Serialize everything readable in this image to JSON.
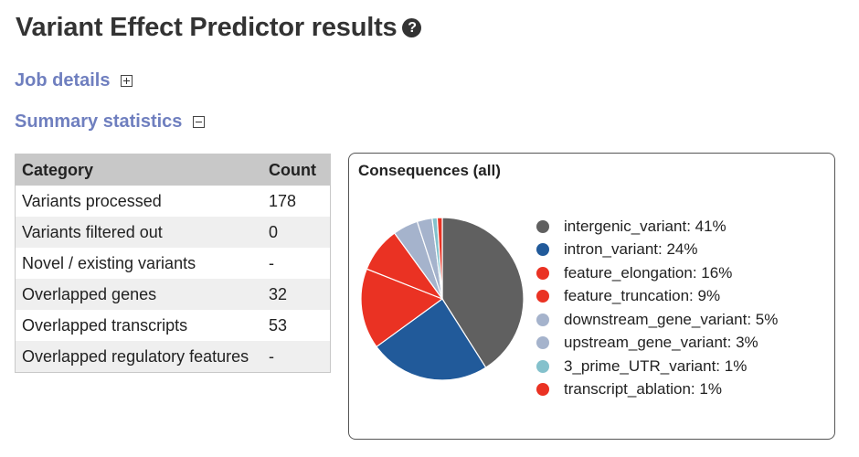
{
  "page": {
    "title": "Variant Effect Predictor results",
    "help_icon": "question-circle-icon"
  },
  "sections": {
    "job_details": "Job details",
    "summary_statistics": "Summary statistics"
  },
  "stats_table": {
    "headers": [
      "Category",
      "Count"
    ],
    "rows": [
      {
        "category": "Variants processed",
        "count": "178"
      },
      {
        "category": "Variants filtered out",
        "count": "0"
      },
      {
        "category": "Novel / existing variants",
        "count": "-"
      },
      {
        "category": "Overlapped genes",
        "count": "32"
      },
      {
        "category": "Overlapped transcripts",
        "count": "53"
      },
      {
        "category": "Overlapped regulatory features",
        "count": "-"
      }
    ]
  },
  "chart_data": {
    "type": "pie",
    "title": "Consequences (all)",
    "legend_position": "right",
    "slices": [
      {
        "label": "intergenic_variant",
        "percent": 41,
        "display": "intergenic_variant: 41%",
        "color": "#606060"
      },
      {
        "label": "intron_variant",
        "percent": 24,
        "display": "intron_variant: 24%",
        "color": "#215a9a"
      },
      {
        "label": "feature_elongation",
        "percent": 16,
        "display": "feature_elongation: 16%",
        "color": "#ea3223"
      },
      {
        "label": "feature_truncation",
        "percent": 9,
        "display": "feature_truncation: 9%",
        "color": "#ea3223"
      },
      {
        "label": "downstream_gene_variant",
        "percent": 5,
        "display": "downstream_gene_variant: 5%",
        "color": "#a5b3cc"
      },
      {
        "label": "upstream_gene_variant",
        "percent": 3,
        "display": "upstream_gene_variant: 3%",
        "color": "#a5b3cc"
      },
      {
        "label": "3_prime_UTR_variant",
        "percent": 1,
        "display": "3_prime_UTR_variant: 1%",
        "color": "#84c1cc"
      },
      {
        "label": "transcript_ablation",
        "percent": 1,
        "display": "transcript_ablation: 1%",
        "color": "#ea3223"
      }
    ]
  }
}
